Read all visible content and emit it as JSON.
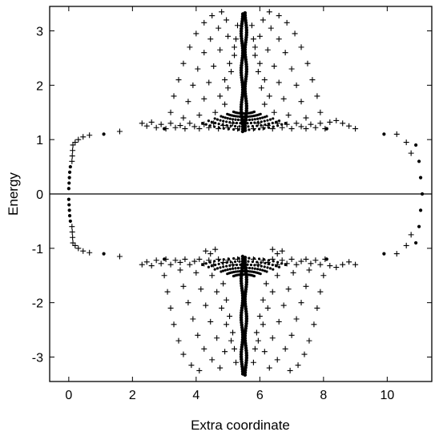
{
  "chart_data": {
    "type": "scatter",
    "title": "",
    "xlabel": "Extra coordinate",
    "ylabel": "Energy",
    "xlim": [
      -0.6,
      11.4
    ],
    "ylim": [
      -3.45,
      3.45
    ],
    "xticks": [
      0,
      2,
      4,
      6,
      8,
      10
    ],
    "yticks": [
      -3,
      -2,
      -1,
      0,
      1,
      2,
      3
    ],
    "xtick_labels": [
      "0",
      "2",
      "4",
      "6",
      "8",
      "10"
    ],
    "ytick_labels": [
      "-3",
      "-2",
      "-1",
      "0",
      "1",
      "2",
      "3"
    ],
    "grid": false,
    "reference_line": {
      "y": 0
    },
    "series": [
      {
        "marker": "plus",
        "points": [
          [
            0.13,
            -0.9
          ],
          [
            0.13,
            0.9
          ],
          [
            0.12,
            -0.8
          ],
          [
            0.12,
            0.8
          ],
          [
            0.11,
            -0.7
          ],
          [
            0.11,
            0.7
          ],
          [
            0.1,
            -0.6
          ],
          [
            0.1,
            0.6
          ],
          [
            0.2,
            -0.95
          ],
          [
            0.2,
            0.95
          ],
          [
            0.3,
            -1
          ],
          [
            0.3,
            1
          ],
          [
            0.45,
            -1.05
          ],
          [
            0.45,
            1.05
          ],
          [
            0.65,
            -1.08
          ],
          [
            0.65,
            1.08
          ],
          [
            1.6,
            -1.15
          ],
          [
            1.6,
            1.15
          ],
          [
            10.3,
            -1.1
          ],
          [
            10.3,
            1.1
          ],
          [
            10.6,
            -0.95
          ],
          [
            10.6,
            0.95
          ],
          [
            10.75,
            -0.75
          ],
          [
            10.75,
            0.75
          ],
          [
            2.3,
            1.3
          ],
          [
            2.45,
            1.25
          ],
          [
            2.6,
            1.32
          ],
          [
            2.75,
            1.22
          ],
          [
            2.9,
            1.28
          ],
          [
            3.05,
            1.2
          ],
          [
            3.2,
            1.3
          ],
          [
            3.35,
            1.22
          ],
          [
            3.5,
            1.26
          ],
          [
            3.65,
            1.2
          ],
          [
            3.8,
            1.3
          ],
          [
            3.95,
            1.24
          ],
          [
            4.1,
            1.2
          ],
          [
            4.25,
            1.28
          ],
          [
            4.4,
            1.22
          ],
          [
            4.55,
            1.3
          ],
          [
            4.7,
            1.2
          ],
          [
            4.85,
            1.26
          ],
          [
            5.0,
            1.22
          ],
          [
            5.15,
            1.3
          ],
          [
            5.3,
            1.2
          ],
          [
            5.8,
            1.2
          ],
          [
            5.95,
            1.3
          ],
          [
            6.1,
            1.22
          ],
          [
            6.25,
            1.26
          ],
          [
            6.4,
            1.2
          ],
          [
            6.55,
            1.3
          ],
          [
            6.7,
            1.22
          ],
          [
            6.85,
            1.28
          ],
          [
            7.0,
            1.2
          ],
          [
            7.15,
            1.3
          ],
          [
            7.3,
            1.24
          ],
          [
            7.45,
            1.2
          ],
          [
            7.6,
            1.28
          ],
          [
            7.75,
            1.22
          ],
          [
            7.9,
            1.3
          ],
          [
            8.05,
            1.2
          ],
          [
            8.2,
            1.32
          ],
          [
            8.4,
            1.35
          ],
          [
            8.6,
            1.3
          ],
          [
            8.8,
            1.25
          ],
          [
            9.0,
            1.2
          ],
          [
            2.3,
            -1.3
          ],
          [
            2.45,
            -1.25
          ],
          [
            2.6,
            -1.32
          ],
          [
            2.75,
            -1.22
          ],
          [
            2.9,
            -1.28
          ],
          [
            3.05,
            -1.2
          ],
          [
            3.2,
            -1.3
          ],
          [
            3.35,
            -1.22
          ],
          [
            3.5,
            -1.26
          ],
          [
            3.65,
            -1.2
          ],
          [
            3.8,
            -1.3
          ],
          [
            3.95,
            -1.24
          ],
          [
            4.1,
            -1.2
          ],
          [
            4.25,
            -1.28
          ],
          [
            4.4,
            -1.22
          ],
          [
            4.55,
            -1.3
          ],
          [
            4.7,
            -1.2
          ],
          [
            4.85,
            -1.26
          ],
          [
            5.0,
            -1.22
          ],
          [
            5.15,
            -1.3
          ],
          [
            5.3,
            -1.2
          ],
          [
            5.8,
            -1.2
          ],
          [
            5.95,
            -1.3
          ],
          [
            6.1,
            -1.22
          ],
          [
            6.25,
            -1.26
          ],
          [
            6.4,
            -1.2
          ],
          [
            6.55,
            -1.3
          ],
          [
            6.7,
            -1.22
          ],
          [
            6.85,
            -1.28
          ],
          [
            7.0,
            -1.2
          ],
          [
            7.15,
            -1.3
          ],
          [
            7.3,
            -1.24
          ],
          [
            7.45,
            -1.2
          ],
          [
            7.6,
            -1.28
          ],
          [
            7.75,
            -1.22
          ],
          [
            7.9,
            -1.3
          ],
          [
            8.05,
            -1.2
          ],
          [
            8.2,
            -1.32
          ],
          [
            8.4,
            -1.35
          ],
          [
            8.6,
            -1.3
          ],
          [
            8.8,
            -1.25
          ],
          [
            9.0,
            -1.3
          ],
          [
            3.2,
            1.5
          ],
          [
            3.3,
            1.8
          ],
          [
            3.45,
            2.1
          ],
          [
            3.6,
            2.4
          ],
          [
            3.8,
            2.7
          ],
          [
            4.0,
            2.95
          ],
          [
            4.25,
            3.15
          ],
          [
            4.5,
            3.28
          ],
          [
            4.8,
            3.35
          ],
          [
            6.3,
            3.35
          ],
          [
            6.6,
            3.28
          ],
          [
            6.85,
            3.15
          ],
          [
            7.1,
            2.95
          ],
          [
            7.3,
            2.7
          ],
          [
            7.5,
            2.4
          ],
          [
            7.65,
            2.1
          ],
          [
            7.8,
            1.8
          ],
          [
            7.9,
            1.5
          ],
          [
            3.6,
            1.4
          ],
          [
            3.75,
            1.7
          ],
          [
            3.9,
            2.0
          ],
          [
            4.05,
            2.3
          ],
          [
            4.25,
            2.6
          ],
          [
            4.45,
            2.85
          ],
          [
            4.7,
            3.05
          ],
          [
            4.95,
            3.2
          ],
          [
            6.1,
            3.2
          ],
          [
            6.35,
            3.05
          ],
          [
            6.6,
            2.85
          ],
          [
            6.8,
            2.6
          ],
          [
            7.0,
            2.3
          ],
          [
            7.15,
            2.0
          ],
          [
            7.3,
            1.7
          ],
          [
            7.45,
            1.4
          ],
          [
            4.1,
            1.45
          ],
          [
            4.25,
            1.75
          ],
          [
            4.4,
            2.05
          ],
          [
            4.55,
            2.35
          ],
          [
            4.75,
            2.65
          ],
          [
            5.0,
            2.9
          ],
          [
            6.0,
            2.9
          ],
          [
            6.25,
            2.65
          ],
          [
            6.45,
            2.35
          ],
          [
            6.6,
            2.05
          ],
          [
            6.75,
            1.75
          ],
          [
            6.9,
            1.45
          ],
          [
            4.6,
            1.5
          ],
          [
            4.75,
            1.8
          ],
          [
            4.9,
            2.1
          ],
          [
            5.05,
            2.4
          ],
          [
            5.2,
            2.7
          ],
          [
            5.85,
            2.7
          ],
          [
            6.0,
            2.4
          ],
          [
            6.15,
            2.1
          ],
          [
            6.3,
            1.8
          ],
          [
            6.45,
            1.5
          ],
          [
            4.9,
            1.65
          ],
          [
            5.0,
            1.95
          ],
          [
            5.1,
            2.25
          ],
          [
            5.2,
            2.55
          ],
          [
            5.25,
            2.85
          ],
          [
            5.3,
            3.1
          ],
          [
            5.75,
            3.1
          ],
          [
            5.8,
            2.85
          ],
          [
            5.85,
            2.55
          ],
          [
            5.95,
            2.25
          ],
          [
            6.05,
            1.95
          ],
          [
            6.15,
            1.65
          ],
          [
            3.0,
            -1.5
          ],
          [
            3.1,
            -1.8
          ],
          [
            3.2,
            -2.1
          ],
          [
            3.3,
            -2.4
          ],
          [
            3.45,
            -2.7
          ],
          [
            3.6,
            -2.95
          ],
          [
            3.85,
            -3.15
          ],
          [
            4.1,
            -3.25
          ],
          [
            6.95,
            -3.25
          ],
          [
            7.2,
            -3.15
          ],
          [
            7.4,
            -2.95
          ],
          [
            7.55,
            -2.7
          ],
          [
            7.7,
            -2.4
          ],
          [
            7.8,
            -2.1
          ],
          [
            7.9,
            -1.8
          ],
          [
            8.0,
            -1.5
          ],
          [
            3.5,
            -1.4
          ],
          [
            3.6,
            -1.7
          ],
          [
            3.75,
            -2.0
          ],
          [
            3.9,
            -2.3
          ],
          [
            4.05,
            -2.6
          ],
          [
            4.25,
            -2.85
          ],
          [
            4.5,
            -3.05
          ],
          [
            4.75,
            -3.2
          ],
          [
            6.3,
            -3.2
          ],
          [
            6.55,
            -3.05
          ],
          [
            6.8,
            -2.85
          ],
          [
            7.0,
            -2.6
          ],
          [
            7.15,
            -2.3
          ],
          [
            7.3,
            -2.0
          ],
          [
            7.45,
            -1.7
          ],
          [
            7.55,
            -1.4
          ],
          [
            4.0,
            -1.45
          ],
          [
            4.15,
            -1.75
          ],
          [
            4.3,
            -2.05
          ],
          [
            4.45,
            -2.35
          ],
          [
            4.65,
            -2.65
          ],
          [
            4.9,
            -2.9
          ],
          [
            6.15,
            -2.9
          ],
          [
            6.4,
            -2.65
          ],
          [
            6.6,
            -2.35
          ],
          [
            6.75,
            -2.05
          ],
          [
            6.9,
            -1.75
          ],
          [
            7.05,
            -1.45
          ],
          [
            4.5,
            -1.5
          ],
          [
            4.65,
            -1.8
          ],
          [
            4.8,
            -2.1
          ],
          [
            4.95,
            -2.4
          ],
          [
            5.1,
            -2.7
          ],
          [
            5.95,
            -2.7
          ],
          [
            6.1,
            -2.4
          ],
          [
            6.25,
            -2.1
          ],
          [
            6.4,
            -1.8
          ],
          [
            6.55,
            -1.5
          ],
          [
            4.85,
            -1.65
          ],
          [
            4.95,
            -1.95
          ],
          [
            5.05,
            -2.25
          ],
          [
            5.15,
            -2.55
          ],
          [
            5.2,
            -2.85
          ],
          [
            5.25,
            -3.1
          ],
          [
            5.8,
            -3.1
          ],
          [
            5.85,
            -2.85
          ],
          [
            5.9,
            -2.55
          ],
          [
            6.0,
            -2.25
          ],
          [
            6.1,
            -1.95
          ],
          [
            6.2,
            -1.65
          ],
          [
            4.3,
            -1.05
          ],
          [
            4.45,
            -1.1
          ],
          [
            4.6,
            -1.02
          ],
          [
            6.4,
            -1.02
          ],
          [
            6.55,
            -1.1
          ],
          [
            6.7,
            -1.05
          ]
        ]
      },
      {
        "marker": "dot",
        "points": [
          [
            0.0,
            -0.1
          ],
          [
            0.0,
            0.1
          ],
          [
            0.01,
            -0.2
          ],
          [
            0.01,
            0.2
          ],
          [
            0.02,
            -0.3
          ],
          [
            0.02,
            0.3
          ],
          [
            0.03,
            -0.4
          ],
          [
            0.03,
            0.4
          ],
          [
            0.05,
            -0.5
          ],
          [
            0.05,
            0.5
          ],
          [
            1.1,
            -1.1
          ],
          [
            1.1,
            1.1
          ],
          [
            9.9,
            -1.1
          ],
          [
            9.9,
            1.1
          ],
          [
            10.9,
            -0.9
          ],
          [
            10.9,
            0.9
          ],
          [
            11.0,
            -0.6
          ],
          [
            11.0,
            0.6
          ],
          [
            11.05,
            -0.3
          ],
          [
            11.05,
            0.3
          ],
          [
            11.1,
            0
          ],
          [
            3.0,
            1.2
          ],
          [
            8.1,
            1.2
          ],
          [
            3.0,
            -1.2
          ],
          [
            8.1,
            -1.2
          ]
        ]
      }
    ],
    "core_column": {
      "x": 5.5,
      "y_top": 3.35,
      "y_bottom": -3.35
    }
  }
}
